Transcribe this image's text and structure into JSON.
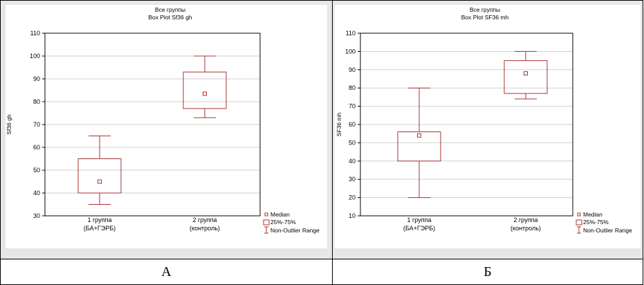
{
  "captions": [
    "А",
    "Б"
  ],
  "chart_data": [
    {
      "type": "box",
      "title_lines": [
        "Все группы",
        "Box Plot Sf36 gh"
      ],
      "ylabel": "Sf36 gh",
      "xlabel": "",
      "ylim": [
        30,
        110
      ],
      "yticks": [
        30,
        40,
        50,
        60,
        70,
        80,
        90,
        100,
        110
      ],
      "grid": "horizontal",
      "legend_position": "bottom-right",
      "legend": [
        "Median",
        "25%-75%",
        "Non-Outlier Range"
      ],
      "categories": [
        [
          "1 группа",
          "(БА+ГЭРБ)"
        ],
        [
          "2 группа",
          "(контроль)"
        ]
      ],
      "boxes": [
        {
          "median": 45,
          "q1": 40,
          "q3": 55,
          "min": 35,
          "max": 65
        },
        {
          "median": 83.5,
          "q1": 77,
          "q3": 93,
          "min": 73,
          "max": 100
        }
      ],
      "color": "#a83232"
    },
    {
      "type": "box",
      "title_lines": [
        "Все группы",
        "Box Plot SF36 mh"
      ],
      "ylabel": "SF36 mh",
      "xlabel": "",
      "ylim": [
        10,
        110
      ],
      "yticks": [
        10,
        20,
        30,
        40,
        50,
        60,
        70,
        80,
        90,
        100,
        110
      ],
      "grid": "horizontal",
      "legend_position": "bottom-right",
      "legend": [
        "Median",
        "25%-75%",
        "Non-Outlier Range"
      ],
      "categories": [
        [
          "1 группа",
          "(БА+ГЭРБ)"
        ],
        [
          "2 группа",
          "(контроль)"
        ]
      ],
      "boxes": [
        {
          "median": 54,
          "q1": 40,
          "q3": 56,
          "min": 20,
          "max": 80
        },
        {
          "median": 88,
          "q1": 77,
          "q3": 95,
          "min": 74,
          "max": 100
        }
      ],
      "color": "#a83232"
    }
  ]
}
